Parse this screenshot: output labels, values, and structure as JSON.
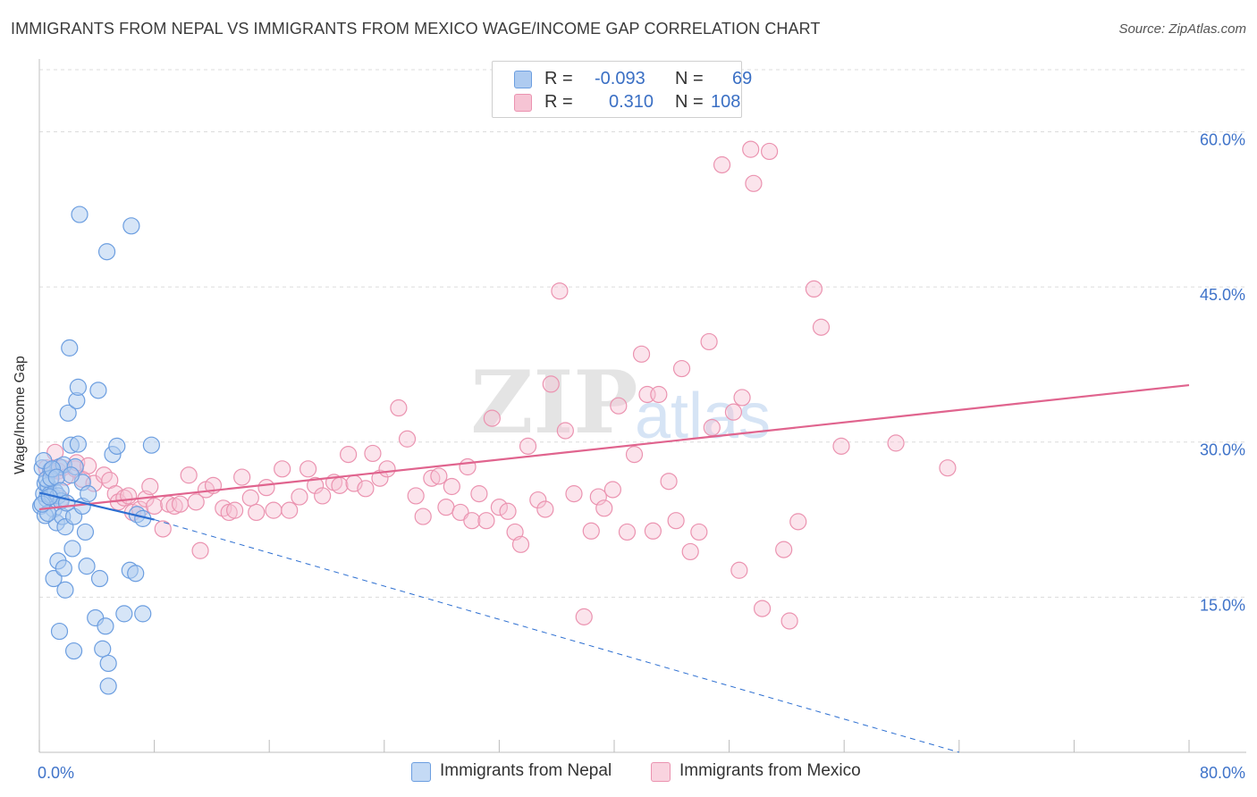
{
  "title": "IMMIGRANTS FROM NEPAL VS IMMIGRANTS FROM MEXICO WAGE/INCOME GAP CORRELATION CHART",
  "source": "Source: ZipAtlas.com",
  "legend": {
    "rows": [
      {
        "r_label": "R =",
        "r_value": "-0.093",
        "n_label": "N =",
        "n_value": "69"
      },
      {
        "r_label": "R =",
        "r_value": "0.310",
        "n_label": "N =",
        "n_value": "108"
      }
    ]
  },
  "bottom_legend": [
    "Immigrants from Nepal",
    "Immigrants from Mexico"
  ],
  "colors": {
    "nepal_fill": "#aecbf0",
    "nepal_stroke": "#6c9ee0",
    "nepal_line": "#2d6fd1",
    "mexico_fill": "#f6c4d4",
    "mexico_stroke": "#eb93b0",
    "mexico_line": "#e0648e",
    "axis_text": "#3f73c9",
    "grid": "#dcdcdc"
  },
  "chart_data": {
    "type": "scatter",
    "title": "IMMIGRANTS FROM NEPAL VS IMMIGRANTS FROM MEXICO WAGE/INCOME GAP CORRELATION CHART",
    "xlabel": "",
    "ylabel": "Wage/Income Gap",
    "xlim": [
      0,
      80
    ],
    "ylim": [
      0,
      66
    ],
    "x_tick_labels": [
      "0.0%",
      "80.0%"
    ],
    "y_ticks": [
      15,
      30,
      45,
      60
    ],
    "y_tick_labels": [
      "15.0%",
      "30.0%",
      "45.0%",
      "60.0%"
    ],
    "watermark": "ZIPatlas",
    "series": [
      {
        "name": "Immigrants from Nepal",
        "points": [
          [
            0.1,
            23.8
          ],
          [
            0.2,
            27.5
          ],
          [
            0.3,
            25.0
          ],
          [
            0.4,
            26.0
          ],
          [
            0.5,
            24.5
          ],
          [
            0.6,
            25.8
          ],
          [
            0.7,
            24.9
          ],
          [
            0.8,
            27.3
          ],
          [
            0.9,
            24.8
          ],
          [
            1.0,
            23.5
          ],
          [
            1.1,
            25.2
          ],
          [
            1.2,
            22.2
          ],
          [
            1.3,
            24.8
          ],
          [
            1.4,
            27.6
          ],
          [
            1.5,
            24.3
          ],
          [
            1.6,
            22.8
          ],
          [
            1.7,
            27.8
          ],
          [
            1.8,
            21.8
          ],
          [
            0.3,
            28.2
          ],
          [
            0.5,
            26.4
          ],
          [
            0.8,
            26.5
          ],
          [
            1.0,
            16.8
          ],
          [
            1.3,
            18.5
          ],
          [
            1.4,
            11.7
          ],
          [
            1.7,
            17.8
          ],
          [
            1.8,
            15.7
          ],
          [
            2.0,
            32.8
          ],
          [
            2.1,
            39.1
          ],
          [
            2.2,
            29.7
          ],
          [
            2.3,
            19.7
          ],
          [
            2.4,
            9.8
          ],
          [
            2.4,
            22.8
          ],
          [
            2.5,
            27.6
          ],
          [
            2.6,
            34.0
          ],
          [
            2.7,
            29.8
          ],
          [
            2.7,
            35.3
          ],
          [
            2.8,
            52.0
          ],
          [
            3.0,
            23.8
          ],
          [
            3.0,
            26.1
          ],
          [
            3.2,
            21.3
          ],
          [
            3.3,
            18.0
          ],
          [
            3.4,
            25.0
          ],
          [
            3.9,
            13.0
          ],
          [
            4.1,
            35.0
          ],
          [
            4.2,
            16.8
          ],
          [
            4.4,
            10.0
          ],
          [
            4.6,
            12.2
          ],
          [
            4.7,
            48.4
          ],
          [
            4.8,
            8.6
          ],
          [
            4.8,
            6.4
          ],
          [
            5.1,
            28.8
          ],
          [
            5.4,
            29.6
          ],
          [
            5.9,
            13.4
          ],
          [
            6.3,
            17.6
          ],
          [
            6.4,
            50.9
          ],
          [
            6.7,
            17.3
          ],
          [
            6.8,
            23.0
          ],
          [
            7.2,
            13.4
          ],
          [
            7.2,
            22.6
          ],
          [
            7.8,
            29.7
          ],
          [
            0.4,
            22.9
          ],
          [
            0.6,
            23.1
          ],
          [
            0.9,
            27.4
          ],
          [
            1.2,
            26.6
          ],
          [
            1.5,
            25.3
          ],
          [
            1.9,
            24.1
          ],
          [
            2.2,
            26.8
          ],
          [
            0.2,
            24.0
          ],
          [
            0.7,
            24.7
          ]
        ],
        "trend": {
          "x": [
            0,
            8
          ],
          "y": [
            25.1,
            22.5
          ]
        },
        "trend_extension": {
          "x": [
            8,
            64
          ],
          "y": [
            22.5,
            0
          ]
        }
      },
      {
        "name": "Immigrants from Mexico",
        "points": [
          [
            0.5,
            27.5
          ],
          [
            0.8,
            27.2
          ],
          [
            1.1,
            29.0
          ],
          [
            1.3,
            27.2
          ],
          [
            1.5,
            24.5
          ],
          [
            1.6,
            27.5
          ],
          [
            1.8,
            26.6
          ],
          [
            2.5,
            27.4
          ],
          [
            2.6,
            28.0
          ],
          [
            3.0,
            26.4
          ],
          [
            3.4,
            27.7
          ],
          [
            3.8,
            26.0
          ],
          [
            4.5,
            26.8
          ],
          [
            4.9,
            26.3
          ],
          [
            5.3,
            25.0
          ],
          [
            5.5,
            24.2
          ],
          [
            5.9,
            24.6
          ],
          [
            6.2,
            24.8
          ],
          [
            6.5,
            23.2
          ],
          [
            7.0,
            23.5
          ],
          [
            7.4,
            24.5
          ],
          [
            7.7,
            25.7
          ],
          [
            8.0,
            23.8
          ],
          [
            8.6,
            21.6
          ],
          [
            9.0,
            24.0
          ],
          [
            9.4,
            23.8
          ],
          [
            9.8,
            24.0
          ],
          [
            10.4,
            26.8
          ],
          [
            10.9,
            24.2
          ],
          [
            11.2,
            19.5
          ],
          [
            11.6,
            25.4
          ],
          [
            12.1,
            25.8
          ],
          [
            12.8,
            23.6
          ],
          [
            13.2,
            23.2
          ],
          [
            13.6,
            23.4
          ],
          [
            14.1,
            26.6
          ],
          [
            14.7,
            24.6
          ],
          [
            15.1,
            23.2
          ],
          [
            15.8,
            25.6
          ],
          [
            16.3,
            23.4
          ],
          [
            16.9,
            27.4
          ],
          [
            17.4,
            23.4
          ],
          [
            18.1,
            24.7
          ],
          [
            18.7,
            27.4
          ],
          [
            19.2,
            25.8
          ],
          [
            19.7,
            24.8
          ],
          [
            20.5,
            26.1
          ],
          [
            20.9,
            25.8
          ],
          [
            21.5,
            28.8
          ],
          [
            21.9,
            26.0
          ],
          [
            22.7,
            25.5
          ],
          [
            23.2,
            28.9
          ],
          [
            23.7,
            26.5
          ],
          [
            24.2,
            27.4
          ],
          [
            25.0,
            33.3
          ],
          [
            25.6,
            30.3
          ],
          [
            26.2,
            24.8
          ],
          [
            26.7,
            22.8
          ],
          [
            27.3,
            26.5
          ],
          [
            27.8,
            26.7
          ],
          [
            28.3,
            23.7
          ],
          [
            28.7,
            25.7
          ],
          [
            29.3,
            23.2
          ],
          [
            29.8,
            27.6
          ],
          [
            30.1,
            22.4
          ],
          [
            30.6,
            25.0
          ],
          [
            31.1,
            22.4
          ],
          [
            31.5,
            32.3
          ],
          [
            32.0,
            23.7
          ],
          [
            32.6,
            23.3
          ],
          [
            33.1,
            21.3
          ],
          [
            33.5,
            20.1
          ],
          [
            34.0,
            29.6
          ],
          [
            34.7,
            24.4
          ],
          [
            35.2,
            23.5
          ],
          [
            35.6,
            35.6
          ],
          [
            36.2,
            44.6
          ],
          [
            36.6,
            31.1
          ],
          [
            37.2,
            25.0
          ],
          [
            37.9,
            13.1
          ],
          [
            38.4,
            21.4
          ],
          [
            38.9,
            24.7
          ],
          [
            39.3,
            23.6
          ],
          [
            39.9,
            25.4
          ],
          [
            40.3,
            33.5
          ],
          [
            40.9,
            21.3
          ],
          [
            41.4,
            28.8
          ],
          [
            41.9,
            38.5
          ],
          [
            42.3,
            34.6
          ],
          [
            42.7,
            21.4
          ],
          [
            43.1,
            34.6
          ],
          [
            43.8,
            26.2
          ],
          [
            44.3,
            22.4
          ],
          [
            44.7,
            37.1
          ],
          [
            45.3,
            19.4
          ],
          [
            45.9,
            21.3
          ],
          [
            46.6,
            39.7
          ],
          [
            46.8,
            31.4
          ],
          [
            47.5,
            56.8
          ],
          [
            48.3,
            32.9
          ],
          [
            48.7,
            17.6
          ],
          [
            48.9,
            34.3
          ],
          [
            49.5,
            58.3
          ],
          [
            49.7,
            55.0
          ],
          [
            50.3,
            13.9
          ],
          [
            50.8,
            58.1
          ],
          [
            51.8,
            19.6
          ],
          [
            52.2,
            12.7
          ]
        ],
        "extra_points": [
          [
            52.8,
            22.3
          ],
          [
            53.9,
            44.8
          ],
          [
            54.4,
            41.1
          ],
          [
            55.8,
            29.6
          ],
          [
            59.6,
            29.9
          ],
          [
            63.2,
            27.5
          ]
        ],
        "trend": {
          "x": [
            0,
            80
          ],
          "y": [
            23.5,
            35.5
          ]
        }
      }
    ]
  }
}
